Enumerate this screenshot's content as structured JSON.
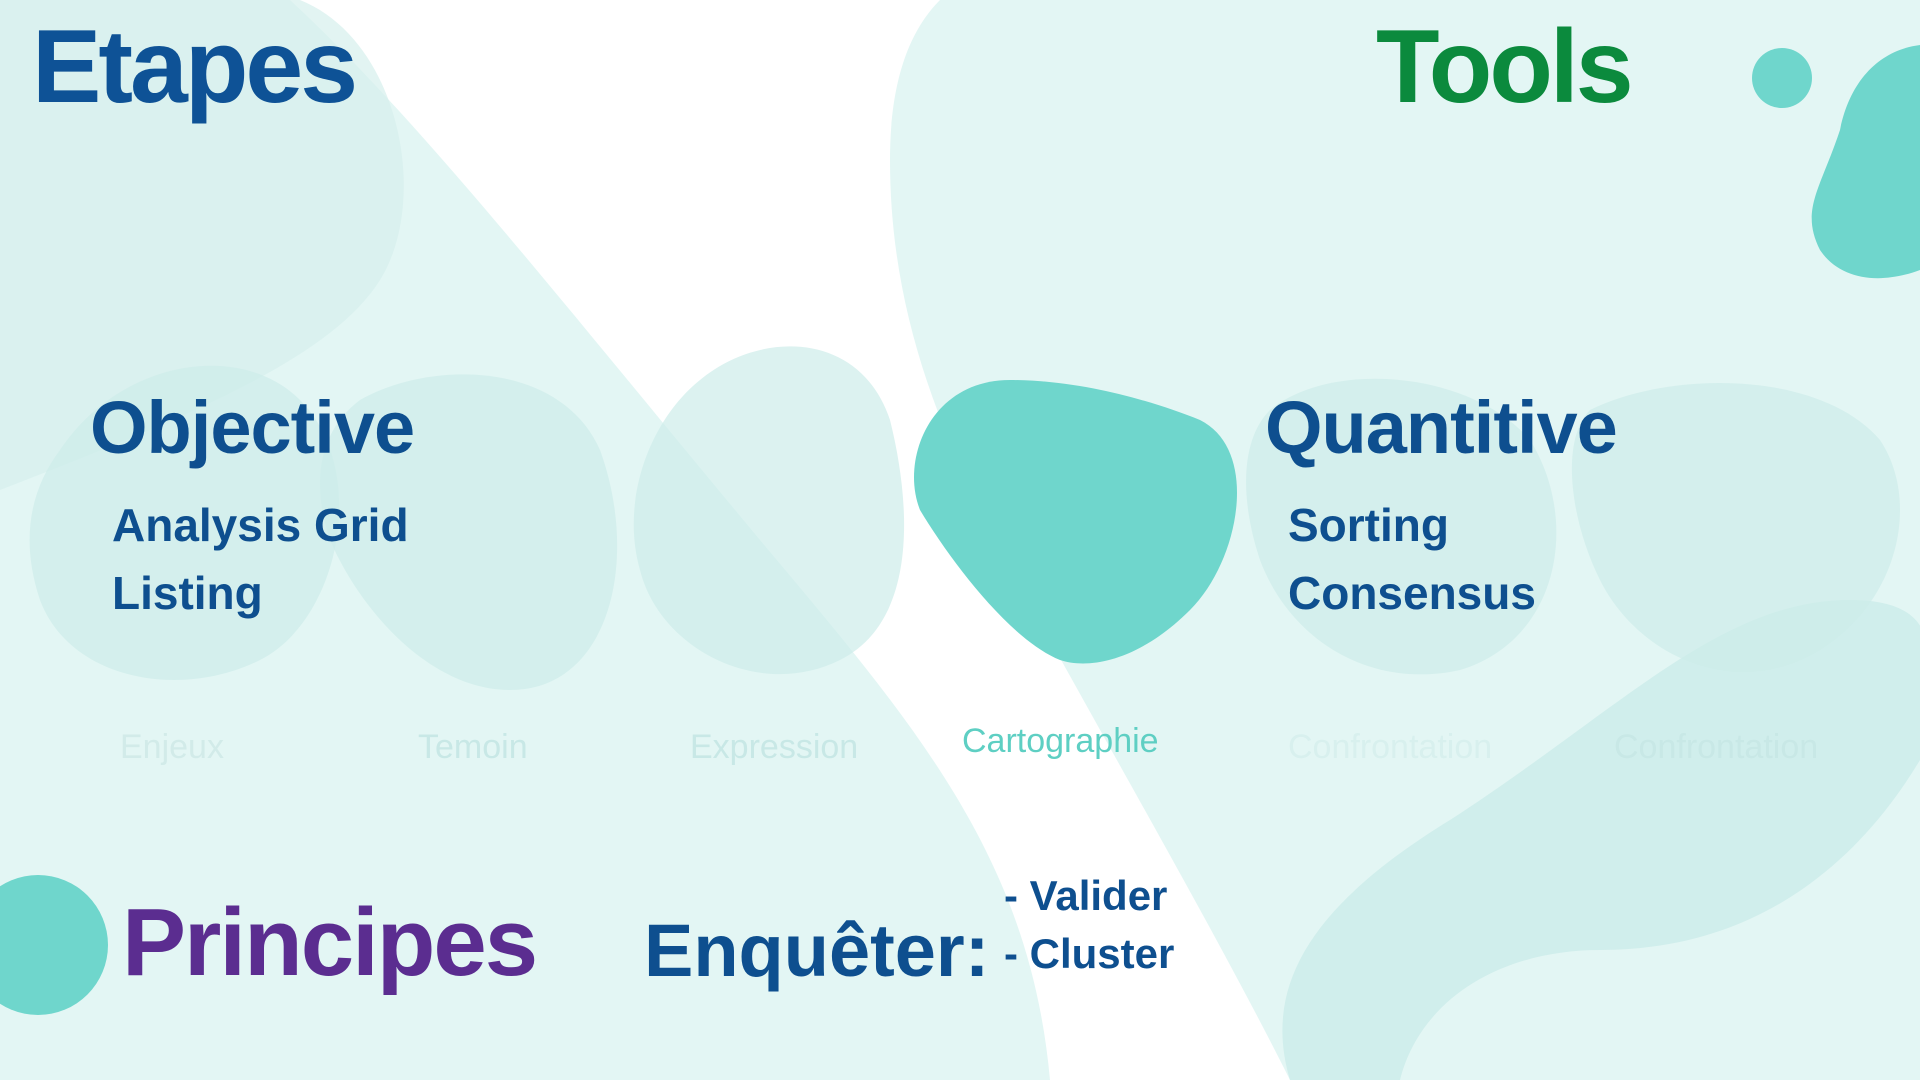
{
  "colors": {
    "pale_teal": "#ddf3f1",
    "light_teal": "#cdecea",
    "accent_teal": "#6fd6cc",
    "navy": "#0e4f8f",
    "green": "#0b8a3d",
    "purple": "#5b2d90"
  },
  "headings": {
    "etapes": "Etapes",
    "tools": "Tools",
    "objective": "Objective",
    "quantitive": "Quantitive",
    "principes": "Principes"
  },
  "objective_items": [
    "Analysis Grid",
    "Listing"
  ],
  "quantitive_items": [
    "Sorting",
    "Consensus"
  ],
  "stages": [
    "Enjeux",
    "Temoin",
    "Expression",
    "Cartographie",
    "Confrontation",
    "Confrontation"
  ],
  "active_stage": "Cartographie",
  "enqueter": {
    "label": "Enquêter:",
    "items": [
      "- Valider",
      "- Cluster"
    ]
  }
}
